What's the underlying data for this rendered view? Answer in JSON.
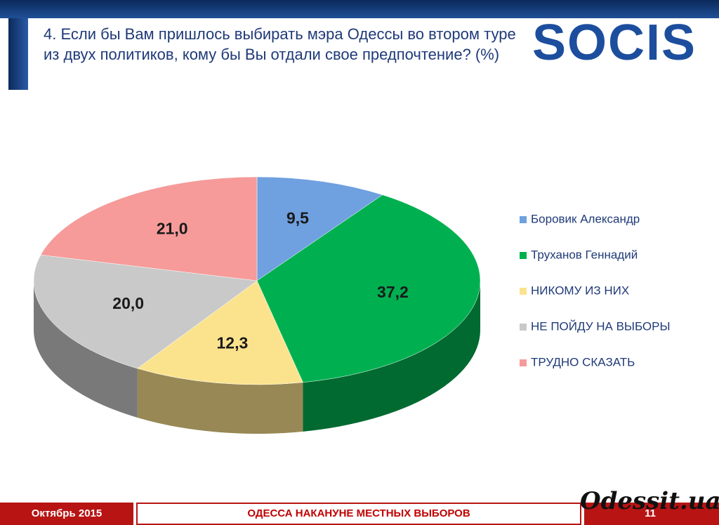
{
  "header": {
    "title": "4. Если бы Вам пришлось выбирать мэра Одессы во втором туре из двух политиков, кому бы Вы отдали свое предпочтение? (%)",
    "logo": "SOCIS"
  },
  "chart_data": {
    "type": "pie",
    "categories": [
      "Боровик Александр",
      "Труханов Геннадий",
      "НИКОМУ ИЗ НИХ",
      "НЕ ПОЙДУ НА ВЫБОРЫ",
      "ТРУДНО СКАЗАТЬ"
    ],
    "values": [
      9.5,
      37.2,
      12.3,
      20.0,
      21.0
    ],
    "value_labels": [
      "9,5",
      "37,2",
      "12,3",
      "20,0",
      "21,0"
    ],
    "colors": [
      "#6fa0e0",
      "#00b050",
      "#fbe38e",
      "#c9c9c9",
      "#f69a9a"
    ],
    "legend": "right"
  },
  "footer": {
    "date": "Октябрь 2015",
    "caption": "ОДЕССА НАКАНУНЕ МЕСТНЫХ ВЫБОРОВ",
    "page": "11",
    "watermark": "Odessit.ua"
  }
}
